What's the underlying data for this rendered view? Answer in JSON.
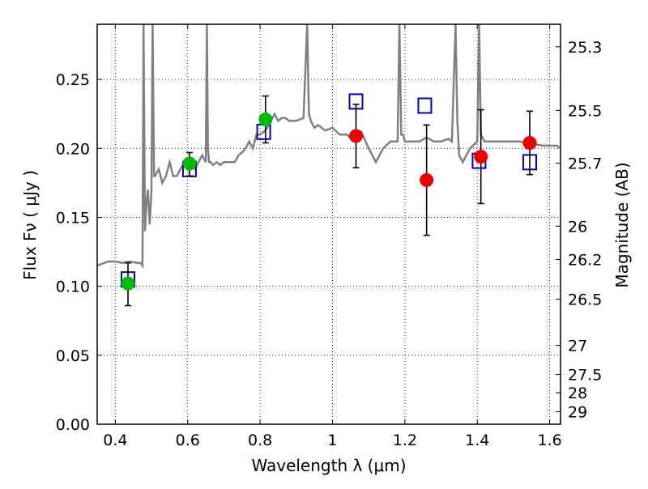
{
  "chart_data": {
    "type": "scatter",
    "xlabel": "Wavelength  λ (μm)",
    "ylabel": "Flux  Fν  ( μJy )",
    "ylabel_right": "Magnitude (AB)",
    "xlim": [
      0.35,
      1.63
    ],
    "ylim": [
      0.0,
      0.29
    ],
    "grid": true,
    "x_ticks": [
      0.4,
      0.6,
      0.8,
      1.0,
      1.2,
      1.4,
      1.6
    ],
    "x_tick_labels": [
      "0.4",
      "0.6",
      "0.8",
      "1",
      "1.2",
      "1.4",
      "1.6"
    ],
    "y_ticks": [
      0.0,
      0.05,
      0.1,
      0.15,
      0.2,
      0.25
    ],
    "y_tick_labels": [
      "0.00",
      "0.05",
      "0.10",
      "0.15",
      "0.20",
      "0.25"
    ],
    "right_ticks": [
      {
        "label": "25.3",
        "flux": 0.2737
      },
      {
        "label": "25.5",
        "flux": 0.2276
      },
      {
        "label": "25.7",
        "flux": 0.1893
      },
      {
        "label": "26",
        "flux": 0.1436
      },
      {
        "label": "26.2",
        "flux": 0.1195
      },
      {
        "label": "26.5",
        "flux": 0.0906
      },
      {
        "label": "27",
        "flux": 0.0572
      },
      {
        "label": "27.5",
        "flux": 0.0361
      },
      {
        "label": "28",
        "flux": 0.0229
      },
      {
        "label": "29",
        "flux": 0.0091
      }
    ],
    "series": [
      {
        "style": "line",
        "color": "#808080",
        "x": [
          0.35,
          0.38,
          0.4,
          0.42,
          0.44,
          0.46,
          0.47,
          0.475,
          0.478,
          0.482,
          0.486,
          0.49,
          0.495,
          0.5,
          0.503,
          0.507,
          0.51,
          0.52,
          0.53,
          0.54,
          0.55,
          0.56,
          0.57,
          0.58,
          0.59,
          0.6,
          0.61,
          0.62,
          0.63,
          0.64,
          0.65,
          0.653,
          0.656,
          0.659,
          0.663,
          0.67,
          0.68,
          0.69,
          0.7,
          0.71,
          0.72,
          0.73,
          0.74,
          0.75,
          0.76,
          0.77,
          0.78,
          0.79,
          0.8,
          0.81,
          0.82,
          0.83,
          0.84,
          0.85,
          0.86,
          0.87,
          0.88,
          0.9,
          0.92,
          0.93,
          0.935,
          0.94,
          0.95,
          0.96,
          0.98,
          1.0,
          1.02,
          1.04,
          1.06,
          1.08,
          1.1,
          1.12,
          1.14,
          1.16,
          1.18,
          1.185,
          1.19,
          1.195,
          1.2,
          1.22,
          1.24,
          1.26,
          1.28,
          1.3,
          1.32,
          1.33,
          1.34,
          1.345,
          1.35,
          1.36,
          1.38,
          1.4,
          1.405,
          1.41,
          1.42,
          1.45,
          1.48,
          1.5,
          1.52,
          1.54,
          1.56,
          1.58,
          1.6,
          1.62,
          1.63
        ],
        "y": [
          0.115,
          0.118,
          0.118,
          0.117,
          0.118,
          0.117,
          0.117,
          0.115,
          0.29,
          0.14,
          0.16,
          0.17,
          0.145,
          0.17,
          0.29,
          0.18,
          0.18,
          0.185,
          0.175,
          0.18,
          0.19,
          0.18,
          0.18,
          0.185,
          0.19,
          0.186,
          0.187,
          0.185,
          0.19,
          0.195,
          0.19,
          0.29,
          0.2,
          0.19,
          0.19,
          0.188,
          0.19,
          0.188,
          0.19,
          0.19,
          0.19,
          0.19,
          0.195,
          0.197,
          0.2,
          0.205,
          0.2,
          0.21,
          0.21,
          0.212,
          0.215,
          0.22,
          0.225,
          0.22,
          0.222,
          0.222,
          0.22,
          0.22,
          0.222,
          0.29,
          0.225,
          0.22,
          0.215,
          0.217,
          0.213,
          0.215,
          0.21,
          0.21,
          0.205,
          0.212,
          0.2,
          0.19,
          0.2,
          0.205,
          0.205,
          0.29,
          0.21,
          0.21,
          0.205,
          0.205,
          0.205,
          0.208,
          0.205,
          0.205,
          0.207,
          0.205,
          0.29,
          0.22,
          0.195,
          0.19,
          0.2,
          0.205,
          0.29,
          0.21,
          0.205,
          0.205,
          0.205,
          0.205,
          0.205,
          0.203,
          0.203,
          0.202,
          0.202,
          0.202,
          0.2
        ]
      },
      {
        "style": "open-square",
        "color": "#0000cc",
        "x": [
          0.435,
          0.605,
          0.81,
          1.065,
          1.255,
          1.405,
          1.545
        ],
        "y": [
          0.105,
          0.185,
          0.212,
          0.234,
          0.231,
          0.191,
          0.19
        ]
      },
      {
        "style": "filled-circle",
        "color": "#00bb00",
        "x": [
          0.435,
          0.605,
          0.815
        ],
        "y": [
          0.102,
          0.189,
          0.221
        ],
        "yerr_low": [
          0.086,
          0.18,
          0.204
        ],
        "yerr_high": [
          0.117,
          0.197,
          0.238
        ]
      },
      {
        "style": "filled-circle",
        "color": "#ee0000",
        "x": [
          1.065,
          1.26,
          1.41,
          1.545
        ],
        "y": [
          0.209,
          0.177,
          0.194,
          0.204
        ],
        "yerr_low": [
          0.186,
          0.137,
          0.16,
          0.181
        ],
        "yerr_high": [
          0.232,
          0.217,
          0.228,
          0.227
        ]
      }
    ]
  }
}
